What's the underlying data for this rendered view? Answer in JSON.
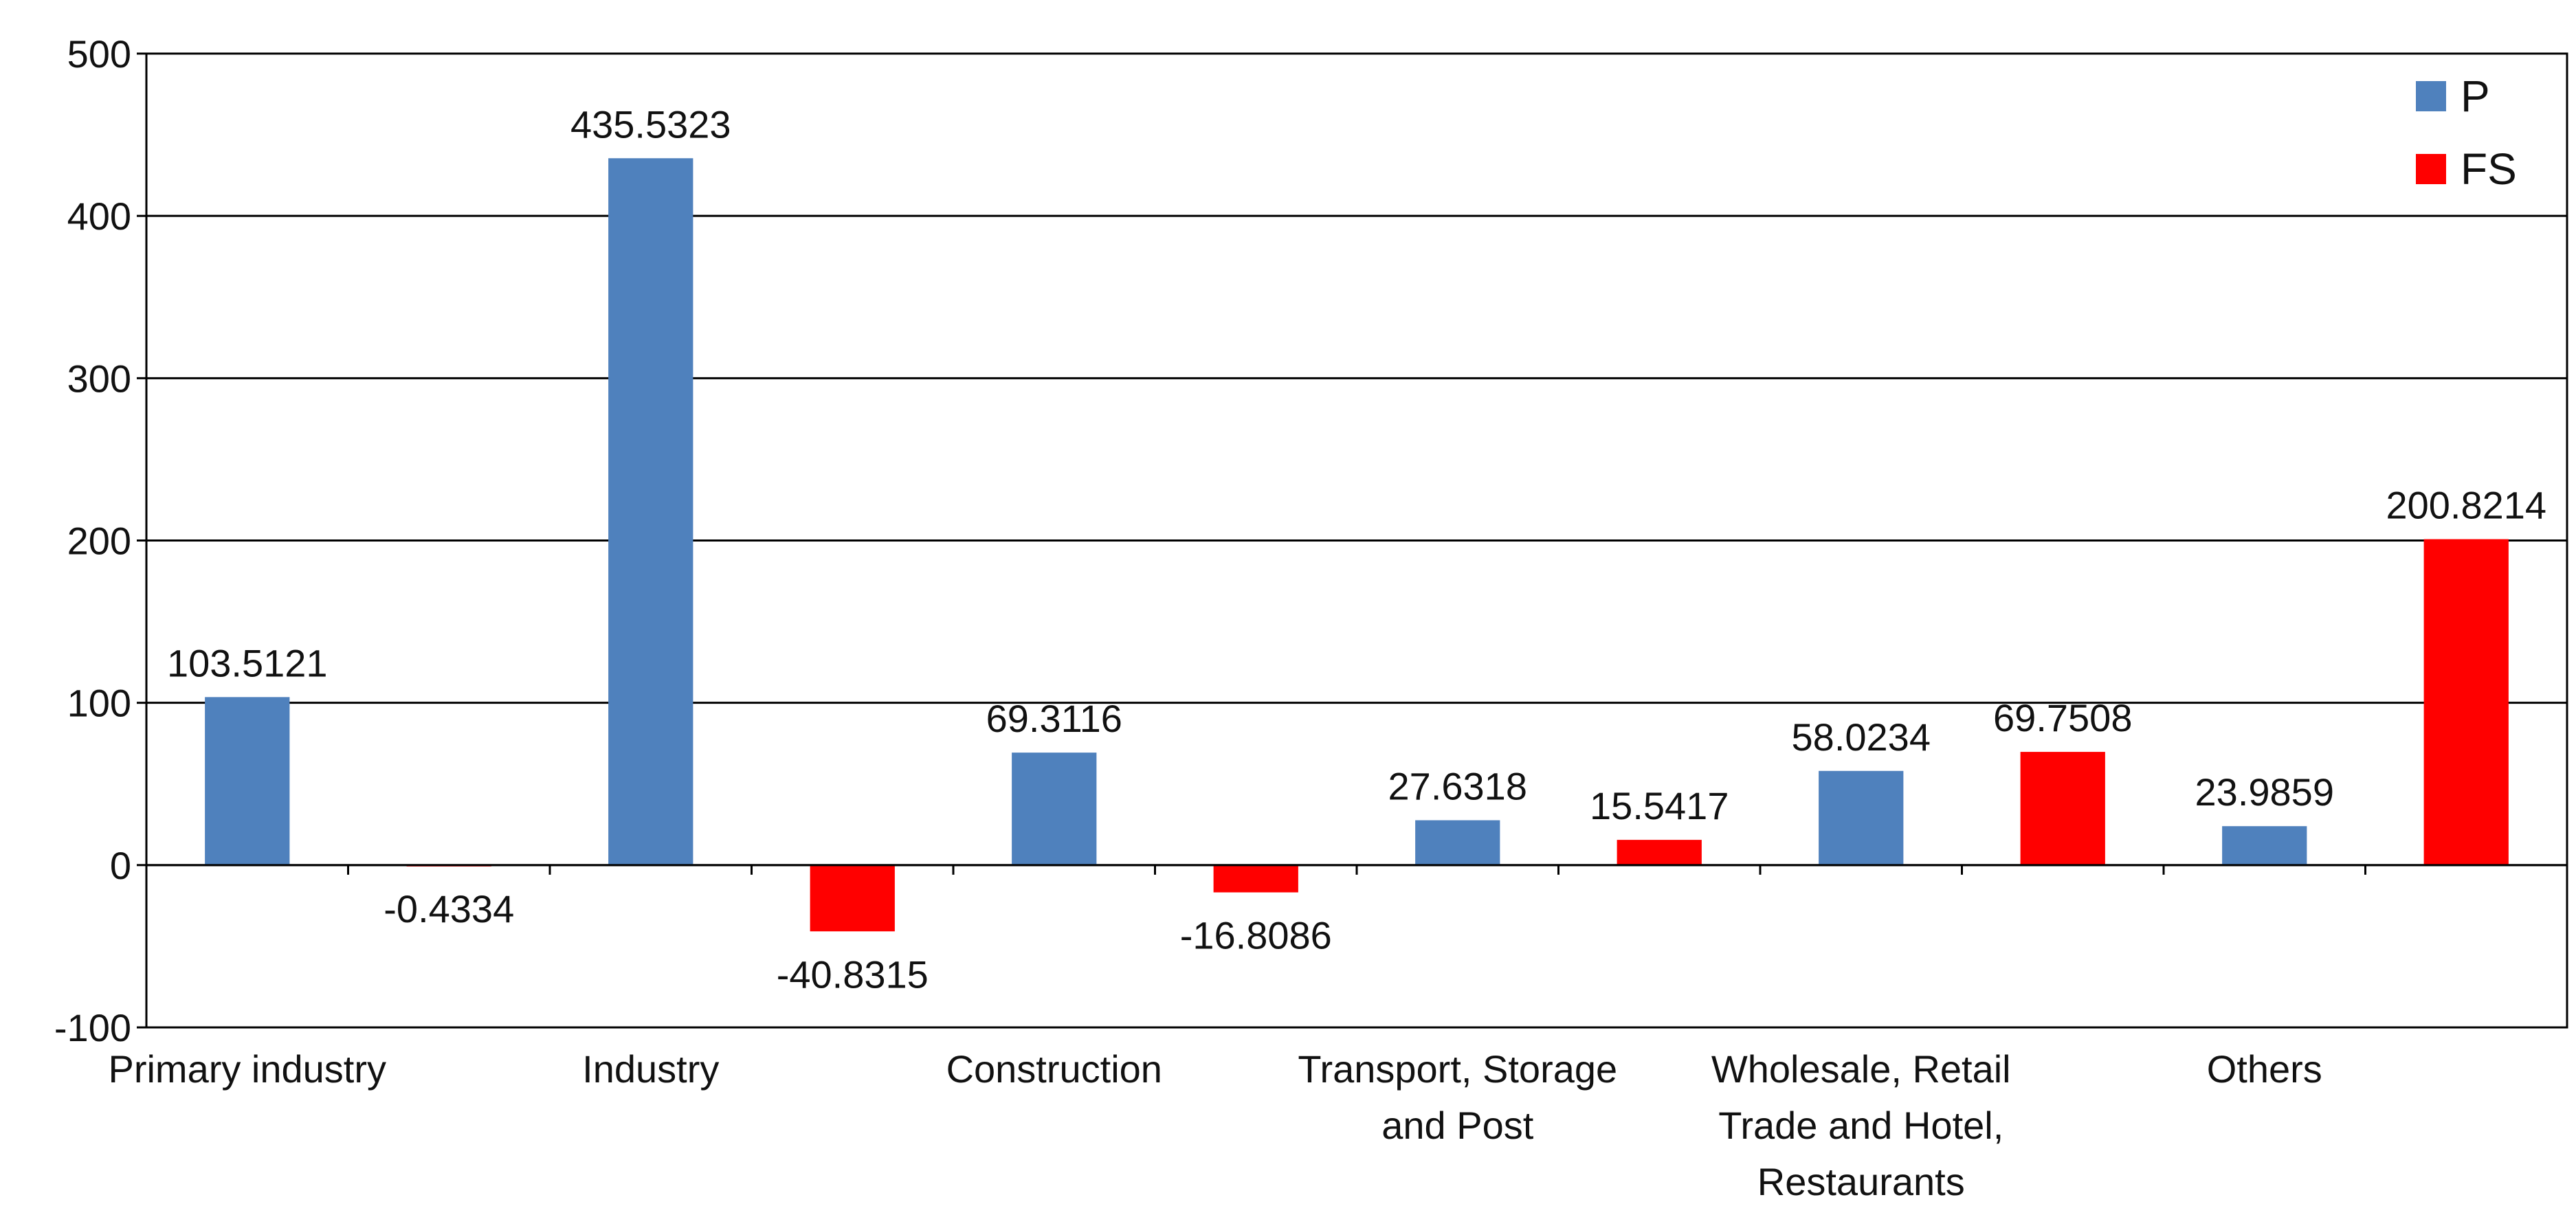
{
  "chart_data": {
    "type": "bar",
    "title": "",
    "xlabel": "",
    "ylabel": "",
    "ylim": [
      -100,
      500
    ],
    "yticks": [
      -100,
      0,
      100,
      200,
      300,
      400,
      500
    ],
    "ytick_labels": [
      "-100",
      "0",
      "100",
      "200",
      "300",
      "400",
      "500"
    ],
    "grid": true,
    "legend_position": "top-right",
    "categories": [
      {
        "lines": [
          "Primary  industry"
        ],
        "series": "P",
        "value": 103.5121,
        "label": "103.5121"
      },
      {
        "lines": [
          ""
        ],
        "series": "FS",
        "value": -0.4334,
        "label": "-0.4334"
      },
      {
        "lines": [
          "Industry"
        ],
        "series": "P",
        "value": 435.5323,
        "label": "435.5323"
      },
      {
        "lines": [
          ""
        ],
        "series": "FS",
        "value": -40.8315,
        "label": "-40.8315"
      },
      {
        "lines": [
          "Construction"
        ],
        "series": "P",
        "value": 69.3116,
        "label": "69.3116"
      },
      {
        "lines": [
          ""
        ],
        "series": "FS",
        "value": -16.8086,
        "label": "-16.8086"
      },
      {
        "lines": [
          "Transport, Storage",
          "and Post"
        ],
        "series": "P",
        "value": 27.6318,
        "label": "27.6318"
      },
      {
        "lines": [
          ""
        ],
        "series": "FS",
        "value": 15.5417,
        "label": "15.5417"
      },
      {
        "lines": [
          "Wholesale, Retail",
          "Trade and Hotel,",
          "Restaurants"
        ],
        "series": "P",
        "value": 58.0234,
        "label": "58.0234"
      },
      {
        "lines": [
          ""
        ],
        "series": "FS",
        "value": 69.7508,
        "label": "69.7508"
      },
      {
        "lines": [
          "Others"
        ],
        "series": "P",
        "value": 23.9859,
        "label": "23.9859"
      },
      {
        "lines": [
          ""
        ],
        "series": "FS",
        "value": 200.8214,
        "label": "200.8214"
      }
    ],
    "series": [
      {
        "name": "P",
        "color": "#4F81BD"
      },
      {
        "name": "FS",
        "color": "#FF0000"
      }
    ]
  }
}
